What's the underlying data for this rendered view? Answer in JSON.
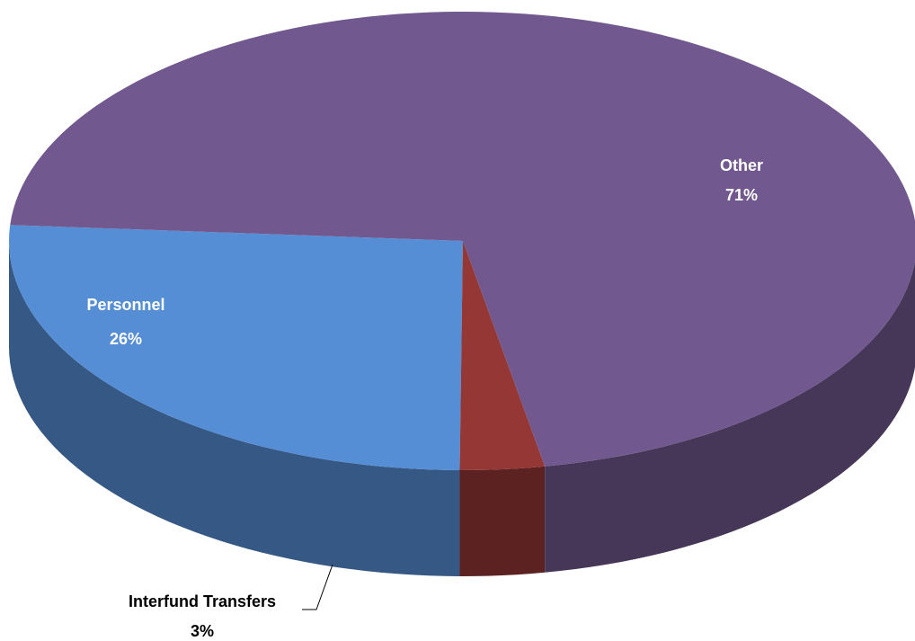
{
  "chart_data": {
    "type": "pie",
    "categories": [
      "Personnel",
      "Interfund Transfers",
      "Other"
    ],
    "values": [
      26,
      3,
      71
    ],
    "value_labels": [
      "26%",
      "3%",
      "71%"
    ],
    "colors": [
      "#558ed5",
      "#953735",
      "#71588f"
    ]
  }
}
